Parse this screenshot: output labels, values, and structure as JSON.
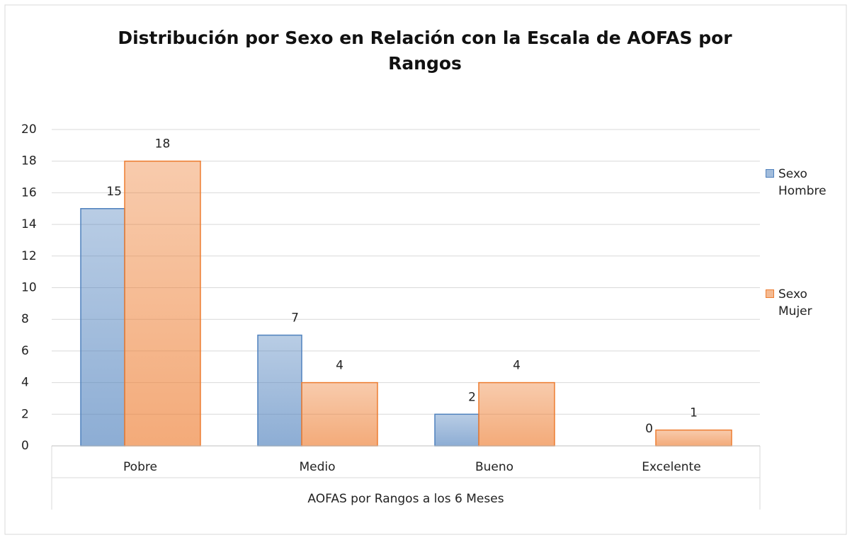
{
  "chart_data": {
    "type": "bar",
    "title": "Distribución por Sexo en Relación con la Escala de AOFAS por Rangos",
    "x_label": "AOFAS por Rangos a los 6 Meses",
    "categories": [
      "Pobre",
      "Medio",
      "Bueno",
      "Excelente"
    ],
    "series": [
      {
        "name": "Sexo Hombre",
        "color": "#4f81bd",
        "values": [
          15,
          7,
          2,
          0
        ]
      },
      {
        "name": "Sexo Mujer",
        "color": "#ed7d31",
        "values": [
          18,
          4,
          4,
          1
        ]
      }
    ],
    "ylim": [
      0,
      20
    ],
    "yticks": [
      0,
      2,
      4,
      6,
      8,
      10,
      12,
      14,
      16,
      18,
      20
    ],
    "grid": true,
    "legend": "right"
  }
}
